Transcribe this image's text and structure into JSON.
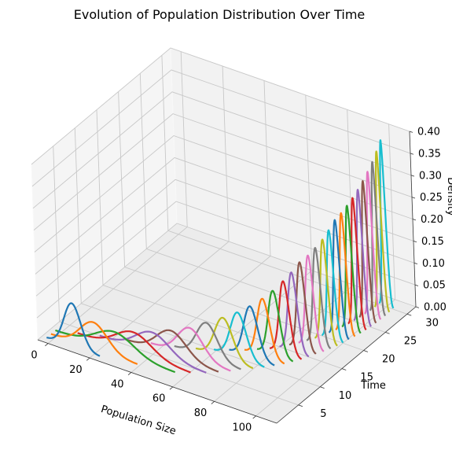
{
  "chart_data": {
    "type": "line",
    "projection": "3d",
    "title": "Evolution of Population Distribution Over Time",
    "xlabel": "Population Size",
    "ylabel": "Time",
    "zlabel": "Density",
    "xlim": [
      -5,
      110
    ],
    "ylim": [
      0,
      32
    ],
    "zlim": [
      0,
      0.4
    ],
    "xticks": [
      "0",
      "20",
      "40",
      "60",
      "80",
      "100"
    ],
    "yticks": [
      "5",
      "10",
      "15",
      "20",
      "25",
      "30"
    ],
    "zticks": [
      "0.00",
      "0.05",
      "0.10",
      "0.15",
      "0.20",
      "0.25",
      "0.30",
      "0.35",
      "0.40"
    ],
    "grid": true,
    "legend": "none",
    "model": "normal density curves, one per time step, mean grows and sigma shrinks over time",
    "series": [
      {
        "time": 1,
        "mean": 10,
        "sigma": 4.0,
        "color": "#1f77b4"
      },
      {
        "time": 2,
        "mean": 18,
        "sigma": 6.5,
        "color": "#ff7f0e"
      },
      {
        "time": 3,
        "mean": 26,
        "sigma": 9.0,
        "color": "#2ca02c"
      },
      {
        "time": 4,
        "mean": 33,
        "sigma": 8.5,
        "color": "#d62728"
      },
      {
        "time": 5,
        "mean": 40,
        "sigma": 8.0,
        "color": "#9467bd"
      },
      {
        "time": 6,
        "mean": 47,
        "sigma": 7.0,
        "color": "#8c564b"
      },
      {
        "time": 7,
        "mean": 54,
        "sigma": 6.0,
        "color": "#e377c2"
      },
      {
        "time": 8,
        "mean": 60,
        "sigma": 5.0,
        "color": "#7f7f7f"
      },
      {
        "time": 9,
        "mean": 66,
        "sigma": 4.3,
        "color": "#bcbd22"
      },
      {
        "time": 10,
        "mean": 71,
        "sigma": 3.8,
        "color": "#17becf"
      },
      {
        "time": 11,
        "mean": 75,
        "sigma": 3.4,
        "color": "#1f77b4"
      },
      {
        "time": 12,
        "mean": 79,
        "sigma": 3.0,
        "color": "#ff7f0e"
      },
      {
        "time": 13,
        "mean": 82,
        "sigma": 2.7,
        "color": "#2ca02c"
      },
      {
        "time": 14,
        "mean": 85,
        "sigma": 2.4,
        "color": "#d62728"
      },
      {
        "time": 15,
        "mean": 87,
        "sigma": 2.2,
        "color": "#9467bd"
      },
      {
        "time": 16,
        "mean": 89,
        "sigma": 2.0,
        "color": "#8c564b"
      },
      {
        "time": 17,
        "mean": 91,
        "sigma": 1.9,
        "color": "#e377c2"
      },
      {
        "time": 18,
        "mean": 92.5,
        "sigma": 1.8,
        "color": "#7f7f7f"
      },
      {
        "time": 19,
        "mean": 94,
        "sigma": 1.7,
        "color": "#bcbd22"
      },
      {
        "time": 20,
        "mean": 95,
        "sigma": 1.6,
        "color": "#17becf"
      },
      {
        "time": 21,
        "mean": 96,
        "sigma": 1.5,
        "color": "#1f77b4"
      },
      {
        "time": 22,
        "mean": 97,
        "sigma": 1.45,
        "color": "#ff7f0e"
      },
      {
        "time": 23,
        "mean": 97.8,
        "sigma": 1.4,
        "color": "#2ca02c"
      },
      {
        "time": 24,
        "mean": 98.5,
        "sigma": 1.35,
        "color": "#d62728"
      },
      {
        "time": 25,
        "mean": 99,
        "sigma": 1.3,
        "color": "#9467bd"
      },
      {
        "time": 26,
        "mean": 99.4,
        "sigma": 1.25,
        "color": "#8c564b"
      },
      {
        "time": 27,
        "mean": 99.7,
        "sigma": 1.2,
        "color": "#e377c2"
      },
      {
        "time": 28,
        "mean": 100,
        "sigma": 1.15,
        "color": "#7f7f7f"
      },
      {
        "time": 29,
        "mean": 100,
        "sigma": 1.1,
        "color": "#bcbd22"
      },
      {
        "time": 30,
        "mean": 100,
        "sigma": 1.05,
        "color": "#17becf"
      }
    ]
  }
}
